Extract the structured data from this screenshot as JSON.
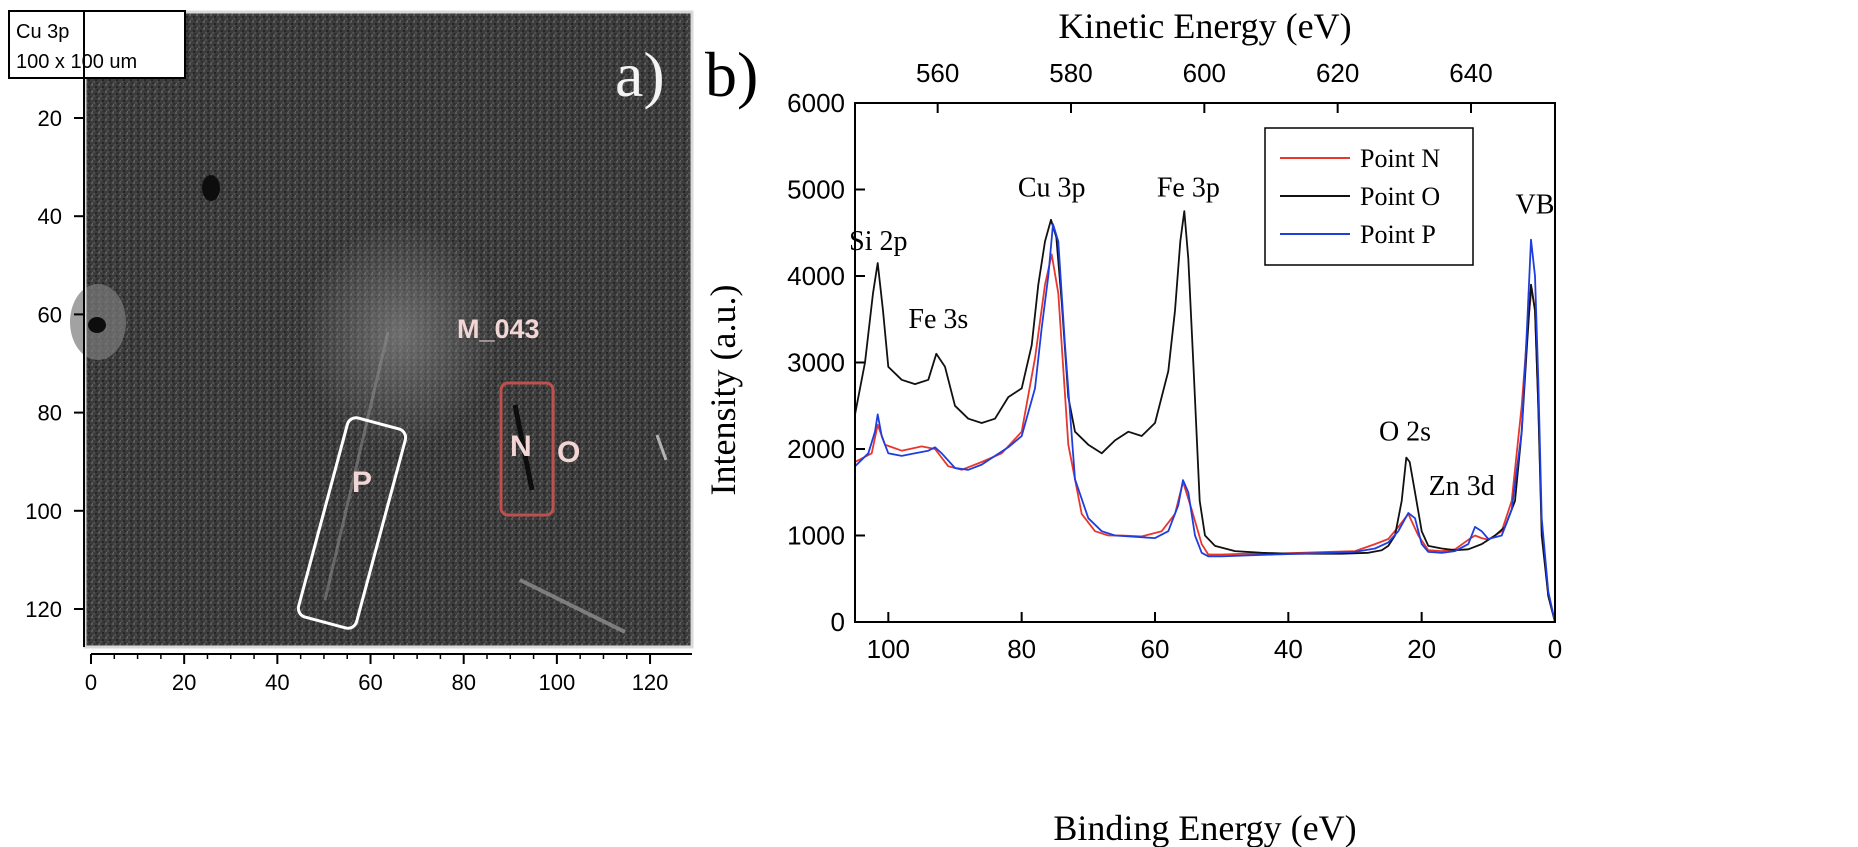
{
  "panel_a": {
    "box_title": "Cu 3p",
    "box_size": "100 x 100 um",
    "panel_label": "a)",
    "sample_label": "M_043",
    "point_labels": [
      "P",
      "N",
      "O"
    ],
    "x_ticks": [
      0,
      20,
      40,
      60,
      80,
      100,
      120
    ],
    "y_ticks": [
      20,
      40,
      60,
      80,
      100,
      120
    ],
    "label_color": "#f2d6d6",
    "box_p_color": "#ffffff",
    "box_n_color": "#c0504d"
  },
  "chart_data": {
    "type": "line",
    "panel_label": "b)",
    "xlabel": "Binding Energy (eV)",
    "ylabel": "Intensity (a.u.)",
    "top_xlabel": "Kinetic Energy (eV)",
    "xlim": [
      105,
      0
    ],
    "ylim": [
      0,
      6000
    ],
    "x_ticks": [
      100,
      80,
      60,
      40,
      20,
      0
    ],
    "y_ticks": [
      0,
      1000,
      2000,
      3000,
      4000,
      5000,
      6000
    ],
    "top_ticks": [
      560,
      580,
      600,
      620,
      640
    ],
    "top_tick_binding_positions": [
      92.6,
      72.6,
      52.6,
      32.6,
      12.6
    ],
    "legend_position": "top-right",
    "annotations": [
      {
        "text": "Si 2p",
        "x": 101.5,
        "y": 4300
      },
      {
        "text": "Fe 3s",
        "x": 92.5,
        "y": 3400
      },
      {
        "text": "Cu 3p",
        "x": 75.5,
        "y": 4920
      },
      {
        "text": "Fe 3p",
        "x": 55.0,
        "y": 4920
      },
      {
        "text": "VB",
        "x": 3.0,
        "y": 4720
      },
      {
        "text": "O 2s",
        "x": 22.5,
        "y": 2100
      },
      {
        "text": "Zn 3d",
        "x": 14.0,
        "y": 1470
      }
    ],
    "series": [
      {
        "name": "Point N",
        "color": "#e8372c",
        "x": [
          105,
          102.5,
          101.6,
          100.5,
          98,
          95,
          93,
          91,
          89,
          86,
          83,
          80,
          78,
          76.5,
          75.5,
          74.5,
          73,
          71,
          69,
          67,
          65,
          62,
          59,
          57,
          55.8,
          54.5,
          53,
          52,
          50,
          46,
          42,
          38,
          34,
          30,
          27,
          25,
          23.5,
          22,
          20.5,
          19,
          17,
          15,
          13,
          12,
          11,
          10,
          8,
          6.5,
          5,
          4,
          3.5,
          3,
          2.5,
          2,
          1,
          0
        ],
        "y": [
          1850,
          1950,
          2280,
          2050,
          1980,
          2030,
          2000,
          1800,
          1760,
          1850,
          1950,
          2200,
          3050,
          3900,
          4250,
          3800,
          2050,
          1250,
          1050,
          1000,
          1000,
          990,
          1050,
          1250,
          1620,
          1300,
          900,
          780,
          780,
          790,
          790,
          800,
          810,
          820,
          900,
          960,
          1100,
          1250,
          1000,
          830,
          820,
          840,
          950,
          1000,
          970,
          950,
          1050,
          1400,
          2500,
          3500,
          3860,
          3600,
          2500,
          1100,
          300,
          0
        ]
      },
      {
        "name": "Point O",
        "color": "#111111",
        "x": [
          105,
          103.5,
          102.3,
          101.6,
          100.8,
          100,
          98,
          96,
          94,
          92.8,
          91.5,
          90,
          88,
          86,
          84,
          82,
          80,
          78.5,
          77.5,
          76.5,
          75.6,
          74.8,
          74,
          73,
          72,
          70,
          68,
          66,
          64,
          62,
          60,
          58,
          57,
          56.2,
          55.6,
          55,
          54.2,
          53.3,
          52.5,
          51,
          48,
          44,
          40,
          36,
          32,
          28,
          26,
          25,
          24,
          23,
          22.3,
          21.8,
          21,
          20,
          19,
          17,
          15,
          13,
          11,
          9,
          7.5,
          6,
          5,
          4.2,
          3.6,
          3,
          2.5,
          2,
          1,
          0
        ],
        "y": [
          2400,
          3000,
          3800,
          4150,
          3600,
          2950,
          2800,
          2750,
          2800,
          3100,
          2950,
          2500,
          2350,
          2300,
          2350,
          2600,
          2700,
          3200,
          3900,
          4400,
          4650,
          4450,
          3700,
          2600,
          2200,
          2050,
          1950,
          2100,
          2200,
          2150,
          2300,
          2900,
          3600,
          4400,
          4750,
          4200,
          2900,
          1400,
          1000,
          880,
          820,
          800,
          790,
          790,
          790,
          800,
          830,
          880,
          1000,
          1400,
          1900,
          1850,
          1500,
          1050,
          880,
          850,
          830,
          840,
          900,
          1000,
          1100,
          1400,
          2200,
          3200,
          3900,
          3600,
          2500,
          1000,
          300,
          0
        ]
      },
      {
        "name": "Point P",
        "color": "#1f3ee0",
        "x": [
          105,
          103,
          102,
          101.6,
          101,
          100,
          98,
          96,
          94,
          93,
          92,
          90,
          88,
          86,
          84,
          82,
          80,
          78,
          77,
          76,
          75.3,
          74.5,
          73.5,
          72,
          70,
          68,
          66,
          64,
          62,
          60,
          58,
          56.5,
          55.8,
          55,
          54,
          53,
          52,
          50,
          46,
          42,
          38,
          34,
          30,
          27,
          25,
          23.5,
          22,
          21,
          20,
          19,
          17,
          15,
          13,
          12,
          11,
          10,
          8,
          6.5,
          5,
          4.2,
          3.6,
          3,
          2.5,
          2,
          1,
          0
        ],
        "y": [
          1800,
          1950,
          2200,
          2400,
          2150,
          1950,
          1920,
          1950,
          1980,
          2020,
          1950,
          1780,
          1760,
          1820,
          1920,
          2020,
          2150,
          2700,
          3400,
          4000,
          4600,
          4400,
          3200,
          1650,
          1200,
          1050,
          1000,
          990,
          980,
          970,
          1050,
          1350,
          1640,
          1500,
          1000,
          800,
          760,
          760,
          770,
          780,
          790,
          800,
          810,
          850,
          920,
          1050,
          1260,
          1200,
          900,
          810,
          800,
          820,
          900,
          1100,
          1050,
          960,
          1000,
          1300,
          2200,
          3400,
          4420,
          4000,
          2800,
          1200,
          350,
          0
        ]
      }
    ]
  }
}
